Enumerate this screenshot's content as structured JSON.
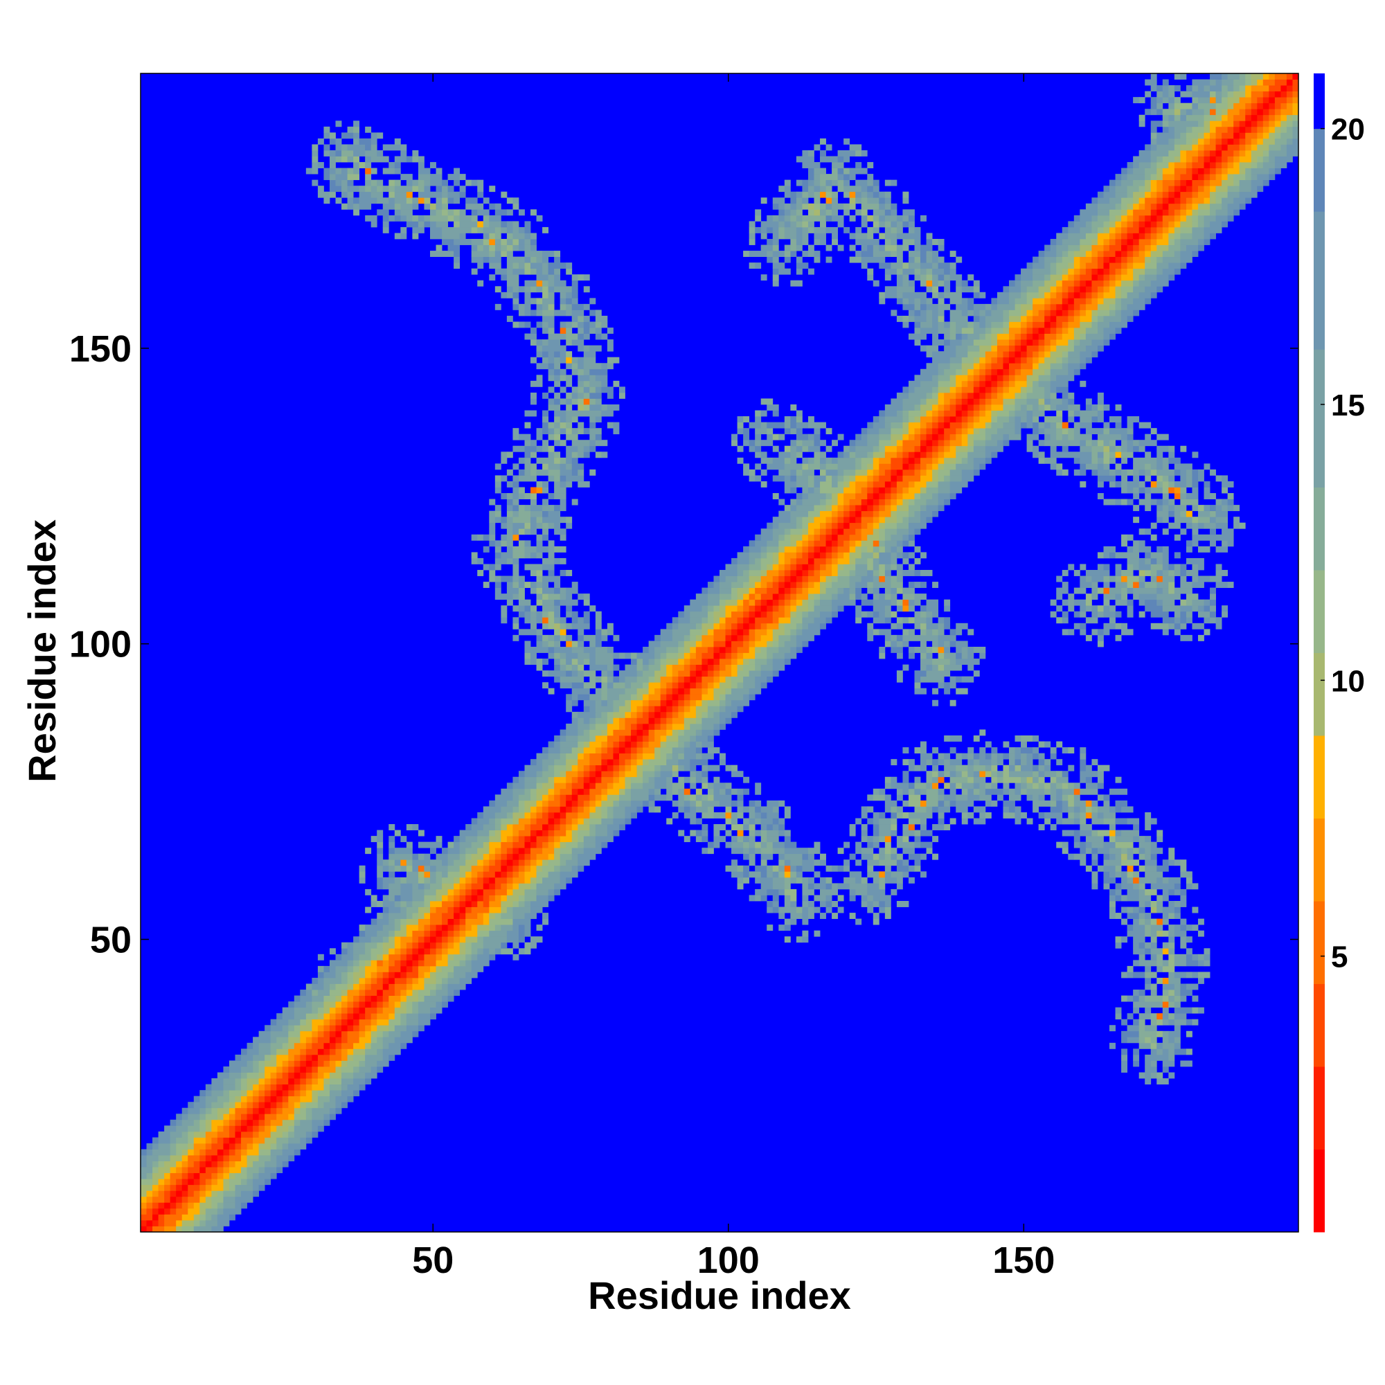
{
  "chart_data": {
    "type": "heatmap",
    "xlabel": "Residue index",
    "ylabel": "Residue index",
    "xlim": [
      1,
      196
    ],
    "ylim": [
      1,
      196
    ],
    "x_ticks": [
      50,
      100,
      150
    ],
    "y_ticks": [
      50,
      100,
      150
    ],
    "colorbar": {
      "range": [
        0,
        21
      ],
      "ticks": [
        5,
        10,
        15,
        20
      ],
      "colors": [
        "#ff0000",
        "#ff2000",
        "#ff4a00",
        "#ff6f00",
        "#ff9000",
        "#ffb000",
        "#a8b870",
        "#97b78a",
        "#86ac99",
        "#7aa1a5",
        "#6e96b0",
        "#5e86b8",
        "#0000ff"
      ],
      "bounds": [
        0,
        1.5,
        3,
        4.5,
        6,
        7.5,
        9,
        10.5,
        12,
        13.5,
        16,
        18.5,
        20,
        21
      ]
    },
    "features": [
      {
        "name": "diagonal",
        "from": [
          1,
          1
        ],
        "to": [
          196,
          196
        ]
      },
      {
        "name": "contact-band",
        "path": [
          [
            36,
            181
          ],
          [
            62,
            168
          ],
          [
            72,
            155
          ],
          [
            75,
            140
          ],
          [
            68,
            128
          ],
          [
            64,
            116
          ]
        ]
      },
      {
        "name": "contact-band",
        "path": [
          [
            64,
            116
          ],
          [
            70,
            104
          ],
          [
            78,
            93
          ],
          [
            86,
            88
          ]
        ]
      },
      {
        "name": "contact-band",
        "path": [
          [
            87,
            82
          ],
          [
            98,
            72
          ],
          [
            106,
            66
          ],
          [
            112,
            57
          ]
        ]
      },
      {
        "name": "contact-band",
        "path": [
          [
            108,
            134
          ],
          [
            116,
            128
          ],
          [
            118,
            122
          ]
        ]
      },
      {
        "name": "contact-band",
        "path": [
          [
            122,
            121
          ],
          [
            128,
            108
          ],
          [
            136,
            97
          ]
        ]
      },
      {
        "name": "contact-band",
        "path": [
          [
            110,
            168
          ],
          [
            118,
            178
          ],
          [
            124,
            172
          ],
          [
            134,
            160
          ],
          [
            146,
            146
          ],
          [
            160,
            135
          ],
          [
            172,
            128
          ],
          [
            180,
            122
          ]
        ]
      },
      {
        "name": "contact-band",
        "path": [
          [
            162,
            107
          ],
          [
            170,
            112
          ],
          [
            178,
            108
          ]
        ]
      },
      {
        "name": "contact-band",
        "path": [
          [
            124,
            60
          ],
          [
            134,
            76
          ],
          [
            146,
            78
          ],
          [
            158,
            75
          ],
          [
            166,
            66
          ],
          [
            172,
            57
          ],
          [
            174,
            45
          ],
          [
            172,
            33
          ]
        ]
      },
      {
        "name": "contact-band",
        "path": [
          [
            45,
            62
          ],
          [
            55,
            58
          ],
          [
            62,
            54
          ]
        ]
      },
      {
        "name": "contact-band",
        "path": [
          [
            36,
            42
          ],
          [
            42,
            48
          ],
          [
            50,
            56
          ],
          [
            58,
            60
          ]
        ]
      },
      {
        "name": "contact-band",
        "path": [
          [
            176,
            190
          ],
          [
            186,
            192
          ],
          [
            192,
            194
          ]
        ]
      }
    ]
  }
}
